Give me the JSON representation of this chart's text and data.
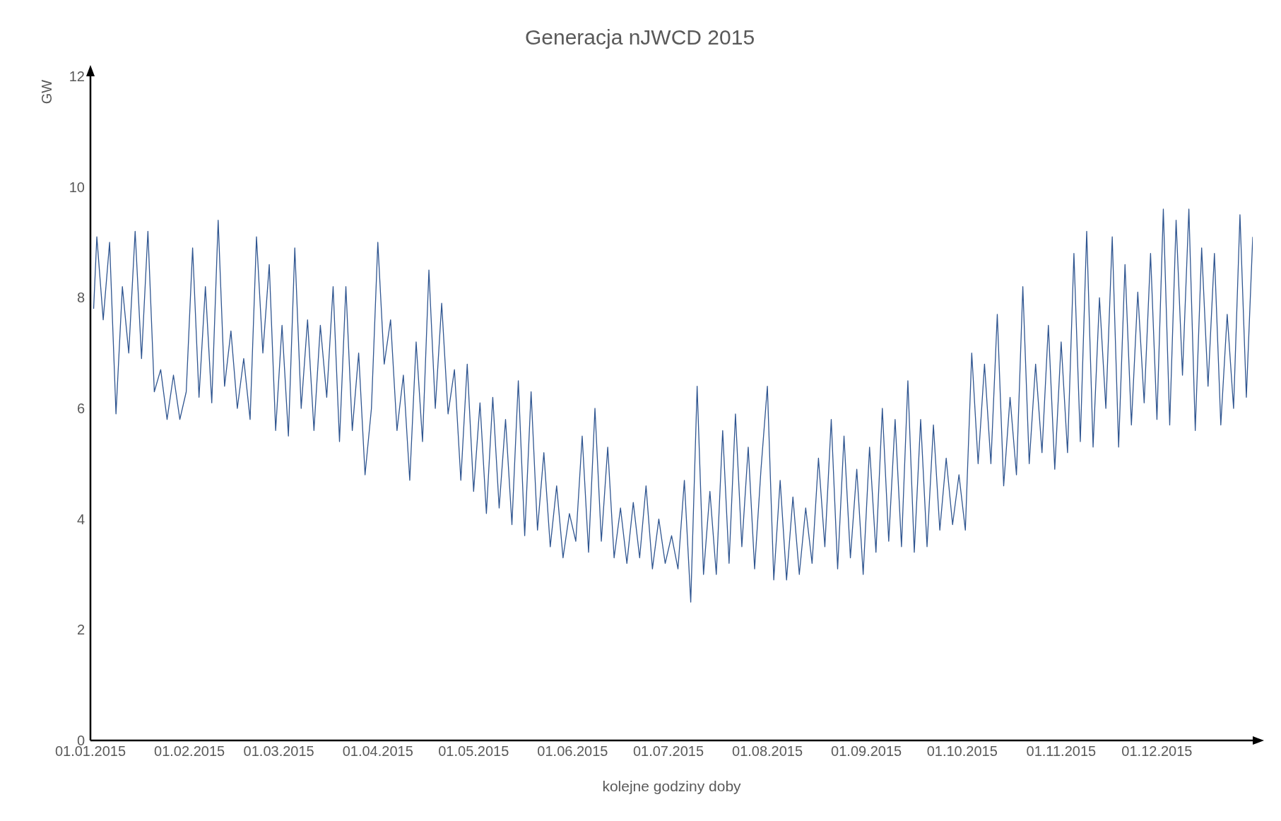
{
  "chart_data": {
    "type": "line",
    "title": "Generacja  nJWCD 2015",
    "xlabel": "kolejne godziny doby",
    "ylabel": "GW",
    "x": [
      "2015-01-02",
      "2015-01-03",
      "2015-01-05",
      "2015-01-07",
      "2015-01-09",
      "2015-01-11",
      "2015-01-13",
      "2015-01-15",
      "2015-01-17",
      "2015-01-19",
      "2015-01-21",
      "2015-01-23",
      "2015-01-25",
      "2015-01-27",
      "2015-01-29",
      "2015-01-31",
      "2015-02-02",
      "2015-02-04",
      "2015-02-06",
      "2015-02-08",
      "2015-02-10",
      "2015-02-12",
      "2015-02-14",
      "2015-02-16",
      "2015-02-18",
      "2015-02-20",
      "2015-02-22",
      "2015-02-24",
      "2015-02-26",
      "2015-02-28",
      "2015-03-02",
      "2015-03-04",
      "2015-03-06",
      "2015-03-08",
      "2015-03-10",
      "2015-03-12",
      "2015-03-14",
      "2015-03-16",
      "2015-03-18",
      "2015-03-20",
      "2015-03-22",
      "2015-03-24",
      "2015-03-26",
      "2015-03-28",
      "2015-03-30",
      "2015-04-01",
      "2015-04-03",
      "2015-04-05",
      "2015-04-07",
      "2015-04-09",
      "2015-04-11",
      "2015-04-13",
      "2015-04-15",
      "2015-04-17",
      "2015-04-19",
      "2015-04-21",
      "2015-04-23",
      "2015-04-25",
      "2015-04-27",
      "2015-04-29",
      "2015-05-01",
      "2015-05-03",
      "2015-05-05",
      "2015-05-07",
      "2015-05-09",
      "2015-05-11",
      "2015-05-13",
      "2015-05-15",
      "2015-05-17",
      "2015-05-19",
      "2015-05-21",
      "2015-05-23",
      "2015-05-25",
      "2015-05-27",
      "2015-05-29",
      "2015-05-31",
      "2015-06-02",
      "2015-06-04",
      "2015-06-06",
      "2015-06-08",
      "2015-06-10",
      "2015-06-12",
      "2015-06-14",
      "2015-06-16",
      "2015-06-18",
      "2015-06-20",
      "2015-06-22",
      "2015-06-24",
      "2015-06-26",
      "2015-06-28",
      "2015-06-30",
      "2015-07-02",
      "2015-07-04",
      "2015-07-06",
      "2015-07-08",
      "2015-07-10",
      "2015-07-12",
      "2015-07-14",
      "2015-07-16",
      "2015-07-18",
      "2015-07-20",
      "2015-07-22",
      "2015-07-24",
      "2015-07-26",
      "2015-07-28",
      "2015-07-30",
      "2015-08-01",
      "2015-08-03",
      "2015-08-05",
      "2015-08-07",
      "2015-08-09",
      "2015-08-11",
      "2015-08-13",
      "2015-08-15",
      "2015-08-17",
      "2015-08-19",
      "2015-08-21",
      "2015-08-23",
      "2015-08-25",
      "2015-08-27",
      "2015-08-29",
      "2015-08-31",
      "2015-09-02",
      "2015-09-04",
      "2015-09-06",
      "2015-09-08",
      "2015-09-10",
      "2015-09-12",
      "2015-09-14",
      "2015-09-16",
      "2015-09-18",
      "2015-09-20",
      "2015-09-22",
      "2015-09-24",
      "2015-09-26",
      "2015-09-28",
      "2015-09-30",
      "2015-10-02",
      "2015-10-04",
      "2015-10-06",
      "2015-10-08",
      "2015-10-10",
      "2015-10-12",
      "2015-10-14",
      "2015-10-16",
      "2015-10-18",
      "2015-10-20",
      "2015-10-22",
      "2015-10-24",
      "2015-10-26",
      "2015-10-28",
      "2015-10-30",
      "2015-11-01",
      "2015-11-03",
      "2015-11-05",
      "2015-11-07",
      "2015-11-09",
      "2015-11-11",
      "2015-11-13",
      "2015-11-15",
      "2015-11-17",
      "2015-11-19",
      "2015-11-21",
      "2015-11-23",
      "2015-11-25",
      "2015-11-27",
      "2015-11-29",
      "2015-12-01",
      "2015-12-03",
      "2015-12-05",
      "2015-12-07",
      "2015-12-09",
      "2015-12-11",
      "2015-12-13",
      "2015-12-15",
      "2015-12-17",
      "2015-12-19",
      "2015-12-21",
      "2015-12-23",
      "2015-12-25",
      "2015-12-27",
      "2015-12-29",
      "2015-12-31"
    ],
    "series": [
      {
        "color": "#2f5590",
        "values": [
          7.8,
          9.1,
          7.6,
          9.0,
          5.9,
          8.2,
          7.0,
          9.2,
          6.9,
          9.2,
          6.3,
          6.7,
          5.8,
          6.6,
          5.8,
          6.3,
          8.9,
          6.2,
          8.2,
          6.1,
          9.4,
          6.4,
          7.4,
          6.0,
          6.9,
          5.8,
          9.1,
          7.0,
          8.6,
          5.6,
          7.5,
          5.5,
          8.9,
          6.0,
          7.6,
          5.6,
          7.5,
          6.2,
          8.2,
          5.4,
          8.2,
          5.6,
          7.0,
          4.8,
          6.0,
          9.0,
          6.8,
          7.6,
          5.6,
          6.6,
          4.7,
          7.2,
          5.4,
          8.5,
          6.0,
          7.9,
          5.9,
          6.7,
          4.7,
          6.8,
          4.5,
          6.1,
          4.1,
          6.2,
          4.2,
          5.8,
          3.9,
          6.5,
          3.7,
          6.3,
          3.8,
          5.2,
          3.5,
          4.6,
          3.3,
          4.1,
          3.6,
          5.5,
          3.4,
          6.0,
          3.6,
          5.3,
          3.3,
          4.2,
          3.2,
          4.3,
          3.3,
          4.6,
          3.1,
          4.0,
          3.2,
          3.7,
          3.1,
          4.7,
          2.5,
          6.4,
          3.0,
          4.5,
          3.0,
          5.6,
          3.2,
          5.9,
          3.5,
          5.3,
          3.1,
          4.9,
          6.4,
          2.9,
          4.7,
          2.9,
          4.4,
          3.0,
          4.2,
          3.2,
          5.1,
          3.5,
          5.8,
          3.1,
          5.5,
          3.3,
          4.9,
          3.0,
          5.3,
          3.4,
          6.0,
          3.6,
          5.8,
          3.5,
          6.5,
          3.4,
          5.8,
          3.5,
          5.7,
          3.8,
          5.1,
          3.9,
          4.8,
          3.8,
          7.0,
          5.0,
          6.8,
          5.0,
          7.7,
          4.6,
          6.2,
          4.8,
          8.2,
          5.0,
          6.8,
          5.2,
          7.5,
          4.9,
          7.2,
          5.2,
          8.8,
          5.4,
          9.2,
          5.3,
          8.0,
          6.0,
          9.1,
          5.3,
          8.6,
          5.7,
          8.1,
          6.1,
          8.8,
          5.8,
          9.6,
          5.7,
          9.4,
          6.6,
          9.6,
          5.6,
          8.9,
          6.4,
          8.8,
          5.7,
          7.7,
          6.0,
          9.5,
          6.2,
          9.1
        ]
      }
    ],
    "xlim": [
      "2015-01-01",
      "2015-12-31"
    ],
    "xticks": [
      {
        "value": "2015-01-01",
        "label": "01.01.2015"
      },
      {
        "value": "2015-02-01",
        "label": "01.02.2015"
      },
      {
        "value": "2015-03-01",
        "label": "01.03.2015"
      },
      {
        "value": "2015-04-01",
        "label": "01.04.2015"
      },
      {
        "value": "2015-05-01",
        "label": "01.05.2015"
      },
      {
        "value": "2015-06-01",
        "label": "01.06.2015"
      },
      {
        "value": "2015-07-01",
        "label": "01.07.2015"
      },
      {
        "value": "2015-08-01",
        "label": "01.08.2015"
      },
      {
        "value": "2015-09-01",
        "label": "01.09.2015"
      },
      {
        "value": "2015-10-01",
        "label": "01.10.2015"
      },
      {
        "value": "2015-11-01",
        "label": "01.11.2015"
      },
      {
        "value": "2015-12-01",
        "label": "01.12.2015"
      }
    ],
    "ylim": [
      0,
      12
    ],
    "yticks": [
      0,
      2,
      4,
      6,
      8,
      10,
      12
    ],
    "grid": false,
    "marker": "none",
    "line_style": "solid"
  }
}
